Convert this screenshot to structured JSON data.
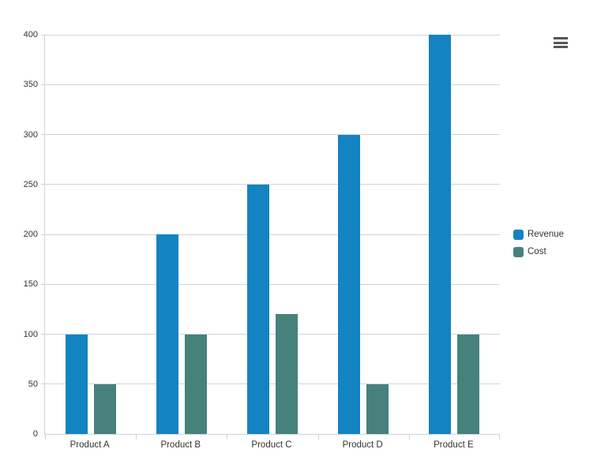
{
  "chart_data": {
    "type": "bar",
    "title": "",
    "xlabel": "",
    "ylabel": "",
    "categories": [
      "Product A",
      "Product B",
      "Product C",
      "Product D",
      "Product E"
    ],
    "series": [
      {
        "name": "Revenue",
        "color": "#1483c2",
        "values": [
          100,
          200,
          250,
          300,
          400
        ]
      },
      {
        "name": "Cost",
        "color": "#47817b",
        "values": [
          50,
          100,
          120,
          50,
          100
        ]
      }
    ],
    "ylim": [
      0,
      400
    ],
    "ytick_step": 50,
    "grid": true,
    "legend_position": "right"
  },
  "colors": {
    "grid_line": "#ccd4de",
    "axis_line": "#c9d4e2",
    "label_text": "#333333",
    "menu_icon": "#555555",
    "background": "#ffffff"
  },
  "toolbar": {
    "context_menu_icon": "hamburger-icon"
  }
}
